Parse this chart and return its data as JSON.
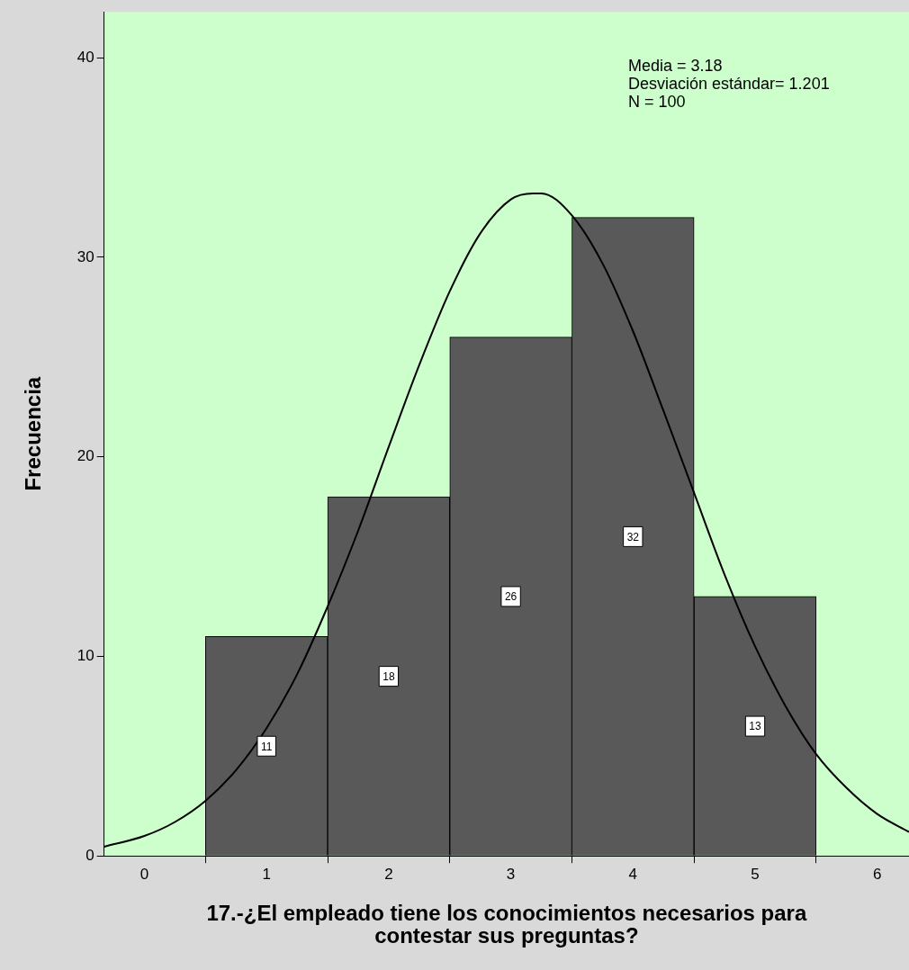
{
  "chart_data": {
    "type": "histogram",
    "xlabel": "17.-¿El empleado tiene los conocimientos necesarios para contestar sus preguntas?",
    "ylabel": "Frecuencia",
    "bins": [
      0.5,
      1.5,
      2.5,
      3.5,
      4.5,
      5.5
    ],
    "values": [
      11,
      18,
      26,
      32,
      13
    ],
    "color": "#595959",
    "value_labels": [
      "11",
      "18",
      "26",
      "32",
      "13"
    ],
    "series": [
      {
        "type": "line",
        "color": "#000000",
        "x": [
          -0.33,
          0,
          0.25,
          0.5,
          0.75,
          1,
          1.25,
          1.5,
          1.75,
          2,
          2.25,
          2.5,
          2.75,
          3,
          3.18,
          3.25,
          3.5,
          3.75,
          4,
          4.25,
          4.5,
          4.75,
          5,
          5.25,
          5.5,
          5.75,
          6,
          6.26
        ],
        "values": [
          0.46,
          1.0,
          1.7,
          2.76,
          4.3,
          6.4,
          9.1,
          12.5,
          16.3,
          20.5,
          24.6,
          28.3,
          31.2,
          32.9,
          33.2,
          33.2,
          32.1,
          29.7,
          26.3,
          22.3,
          18.2,
          14.1,
          10.5,
          7.5,
          5.1,
          3.4,
          2.1,
          1.2
        ]
      }
    ],
    "marker": "none",
    "xlim": [
      -0.33,
      6.26
    ],
    "ylim": [
      0,
      42.3
    ],
    "xticks": [
      0,
      1,
      2,
      3,
      4,
      5,
      6
    ],
    "yticks": [
      0,
      10,
      20,
      30,
      40
    ],
    "grid": false,
    "legend": false,
    "annotations": [
      "Media = 3.18",
      "Desviación estándar= 1.201",
      "N = 100"
    ]
  }
}
